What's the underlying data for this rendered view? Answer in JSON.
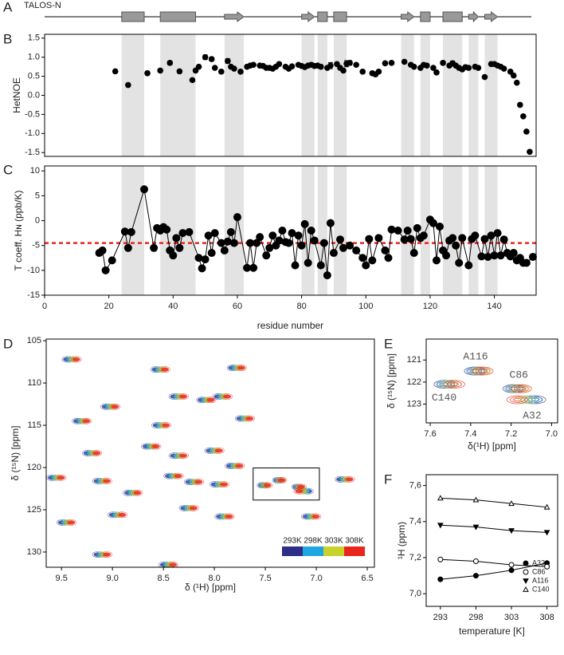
{
  "chart_data": [
    {
      "panel": "A",
      "type": "track",
      "title": "TALOS-N",
      "xlim": [
        0,
        153
      ],
      "color": "#999999",
      "elements": [
        {
          "kind": "helix",
          "start": 24,
          "end": 31
        },
        {
          "kind": "helix",
          "start": 36,
          "end": 47
        },
        {
          "kind": "strand",
          "start": 56,
          "end": 62
        },
        {
          "kind": "strand",
          "start": 80,
          "end": 84
        },
        {
          "kind": "helix",
          "start": 85,
          "end": 88
        },
        {
          "kind": "helix",
          "start": 90,
          "end": 94
        },
        {
          "kind": "strand",
          "start": 111,
          "end": 115
        },
        {
          "kind": "helix",
          "start": 117,
          "end": 120
        },
        {
          "kind": "helix",
          "start": 124,
          "end": 130
        },
        {
          "kind": "strand",
          "start": 132,
          "end": 135
        },
        {
          "kind": "strand",
          "start": 137,
          "end": 141
        }
      ]
    },
    {
      "panel": "B",
      "type": "scatter",
      "ylabel": "HetNOE",
      "xlim": [
        0,
        153
      ],
      "ylim": [
        -1.6,
        1.6
      ],
      "shade_secondary_structure": true,
      "color": "#000000",
      "yticks": [
        -1.5,
        {
          "value": -1,
          "label": "-1.0"
        },
        -0.5,
        {
          "value": 0,
          "label": "0.0"
        },
        0.5,
        {
          "value": 1,
          "label": "1.0"
        },
        1.5
      ],
      "x": [
        22,
        26,
        32,
        36,
        39,
        42,
        46,
        47,
        48,
        50,
        52,
        53,
        55,
        57,
        58,
        59,
        61,
        63,
        64,
        65,
        67,
        68,
        69,
        70,
        71,
        72,
        73,
        75,
        76,
        77,
        79,
        80,
        81,
        82,
        83,
        84,
        85,
        86,
        88,
        89,
        91,
        92,
        93,
        94,
        95,
        97,
        99,
        102,
        103,
        104,
        106,
        108,
        112,
        114,
        115,
        117,
        118,
        119,
        121,
        122,
        124,
        126,
        127,
        128,
        129,
        130,
        131,
        132,
        134,
        135,
        137,
        139,
        140,
        141,
        142,
        143,
        145,
        146,
        147,
        148,
        149,
        150,
        151
      ],
      "values": [
        0.63,
        0.27,
        0.58,
        0.65,
        0.85,
        0.63,
        0.4,
        0.65,
        0.75,
        1.0,
        0.95,
        0.72,
        0.62,
        0.9,
        0.75,
        0.7,
        0.62,
        0.75,
        0.78,
        0.8,
        0.78,
        0.77,
        0.72,
        0.72,
        0.7,
        0.75,
        0.82,
        0.75,
        0.7,
        0.76,
        0.8,
        0.77,
        0.74,
        0.78,
        0.8,
        0.77,
        0.78,
        0.75,
        0.72,
        0.78,
        0.82,
        0.72,
        0.65,
        0.83,
        0.85,
        0.8,
        0.62,
        0.58,
        0.55,
        0.62,
        0.84,
        0.85,
        0.88,
        0.8,
        0.75,
        0.72,
        0.8,
        0.78,
        0.72,
        0.6,
        0.85,
        0.78,
        0.84,
        0.78,
        0.72,
        0.68,
        0.74,
        0.72,
        0.75,
        0.72,
        0.48,
        0.82,
        0.82,
        0.78,
        0.75,
        0.7,
        0.62,
        0.52,
        0.33,
        -0.25,
        -0.55,
        -0.95,
        -1.48
      ],
      "errors": [
        0.04,
        0.03,
        0.05,
        0.04,
        0.05,
        0.04,
        0.04,
        0.03,
        0.03,
        0.06,
        0.05,
        0.03,
        0.04,
        0.06,
        0.03,
        0.03,
        0.03,
        0.03,
        0.03,
        0.03,
        0.03,
        0.03,
        0.03,
        0.03,
        0.03,
        0.03,
        0.04,
        0.03,
        0.03,
        0.03,
        0.03,
        0.03,
        0.03,
        0.03,
        0.05,
        0.05,
        0.03,
        0.05,
        0.03,
        0.08,
        0.03,
        0.03,
        0.03,
        0.08,
        0.06,
        0.04,
        0.04,
        0.04,
        0.05,
        0.04,
        0.03,
        0.03,
        0.03,
        0.03,
        0.03,
        0.03,
        0.03,
        0.03,
        0.03,
        0.04,
        0.05,
        0.03,
        0.06,
        0.03,
        0.03,
        0.03,
        0.03,
        0.03,
        0.03,
        0.03,
        0.04,
        0.04,
        0.04,
        0.03,
        0.03,
        0.03,
        0.03,
        0.03,
        0.03,
        0.03,
        0.03,
        0.03,
        0.03
      ]
    },
    {
      "panel": "C",
      "type": "line",
      "xlabel": "residue number",
      "ylabel": "T coeff. Hɴ (ppb/K)",
      "xlim": [
        0,
        153
      ],
      "ylim": [
        -15,
        11
      ],
      "shade_secondary_structure": true,
      "xticks": [
        0,
        20,
        40,
        60,
        80,
        100,
        120,
        140
      ],
      "yticks": [
        -15,
        -10,
        -5,
        0,
        5,
        10
      ],
      "color": "#000000",
      "marker": "circle-filled",
      "threshold": -4.5,
      "threshold_color": "#e8261e",
      "x": [
        17,
        18,
        19,
        21,
        25,
        26,
        27,
        31,
        34,
        35,
        36,
        37,
        38,
        39,
        40,
        41,
        42,
        43,
        45,
        48,
        49,
        50,
        51,
        52,
        53,
        55,
        56,
        57,
        58,
        59,
        60,
        63,
        64,
        65,
        66,
        67,
        69,
        70,
        71,
        72,
        73,
        74,
        75,
        76,
        77,
        78,
        79,
        80,
        81,
        82,
        83,
        84,
        86,
        87,
        88,
        89,
        90,
        92,
        93,
        95,
        97,
        99,
        100,
        101,
        102,
        104,
        106,
        107,
        108,
        110,
        112,
        113,
        114,
        115,
        116,
        117,
        118,
        120,
        121,
        122,
        123,
        124,
        125,
        126,
        127,
        128,
        129,
        130,
        132,
        133,
        134,
        136,
        137,
        138,
        139,
        140,
        141,
        142,
        143,
        144,
        145,
        146,
        147,
        148,
        149,
        150,
        152
      ],
      "values": [
        -6.5,
        -6,
        -10,
        -8,
        -2.2,
        -5.5,
        -2.3,
        6.3,
        -5.5,
        -1.5,
        -2,
        -1.3,
        -1.8,
        -6,
        -7,
        -3.5,
        -5.5,
        -2.5,
        -2.3,
        -7.5,
        -9.6,
        -7.8,
        -3,
        -6.5,
        -2.5,
        -4.5,
        -6,
        -4.2,
        -2.3,
        -4.5,
        0.7,
        -9.5,
        -4.5,
        -9.5,
        -4.5,
        -3.3,
        -7,
        -5.5,
        -3,
        -5,
        -4,
        -2,
        -4.3,
        -4.5,
        -2.5,
        -9,
        -3,
        -5,
        -0.7,
        -8.5,
        -2,
        -4,
        -9,
        -4.5,
        -11,
        -0.5,
        -6.5,
        -3.8,
        -5.5,
        -5,
        -6,
        -7.5,
        -9,
        -3.7,
        -8,
        -3.5,
        -6,
        -7.5,
        -1.8,
        -2,
        -3.8,
        -2,
        -3.7,
        -6.5,
        -1.5,
        -3.5,
        -3,
        0.2,
        -0.5,
        -8,
        -1.2,
        -6,
        -7,
        -4,
        -3.5,
        -5,
        -8.5,
        -3.5,
        -9,
        -3.7,
        -3,
        -7.2,
        -3.7,
        -7.3,
        -3,
        -7,
        -2.5,
        -7,
        -3.8,
        -6.5,
        -7.2,
        -6.5,
        -8,
        -7.5,
        -8.5,
        -8.5,
        -7.3
      ]
    },
    {
      "panel": "D",
      "type": "spectrum",
      "xlabel": "δ (¹H) [ppm]",
      "ylabel": "δ (¹⁵N) [ppm]",
      "xlim": [
        9.65,
        6.43
      ],
      "ylim": [
        104.8,
        131.8
      ],
      "legend": "lower right",
      "xticks": [
        9.5,
        {
          "value": 9,
          "label": "9.0"
        },
        8.5,
        {
          "value": 8,
          "label": "8.0"
        },
        7.5,
        {
          "value": 7,
          "label": "7.0"
        },
        6.5
      ],
      "yticks": [
        105,
        110,
        115,
        120,
        125,
        130
      ],
      "y": [
        107.2,
        108.4,
        108.2,
        112.8,
        111.6,
        112.0,
        111.6,
        114.5,
        115.0,
        114.2,
        117.5,
        118.3,
        118.6,
        118.0,
        119.8,
        121.6,
        121.0,
        121.7,
        122.0,
        123.0,
        121.2,
        125.6,
        124.8,
        125.8,
        125.8,
        121.4,
        126.5,
        130.3,
        131.5,
        121.5,
        122.3,
        122.1,
        122.8
      ],
      "series": [
        {
          "name": "293K",
          "color": "#2e2d88",
          "x": [
            9.445,
            8.575,
            7.825,
            9.065,
            8.395,
            8.125,
            7.965,
            9.345,
            8.565,
            7.745,
            8.665,
            9.245,
            8.395,
            8.045,
            7.845,
            9.145,
            8.445,
            8.245,
            7.995,
            8.845,
            9.595,
            8.995,
            8.295,
            7.945,
            7.095,
            6.765,
            9.495,
            9.145,
            8.495,
            7.38,
            7.19,
            7.53,
            7.08
          ]
        },
        {
          "name": "298K",
          "color": "#1ea7e1",
          "x": [
            9.415,
            8.545,
            7.795,
            9.035,
            8.365,
            8.095,
            7.935,
            9.315,
            8.535,
            7.715,
            8.635,
            9.215,
            8.365,
            8.015,
            7.815,
            9.115,
            8.415,
            8.215,
            7.965,
            8.815,
            9.565,
            8.965,
            8.265,
            7.915,
            7.065,
            6.735,
            9.465,
            9.115,
            8.465,
            7.37,
            7.18,
            7.52,
            7.1
          ]
        },
        {
          "name": "303K",
          "color": "#c8d22a",
          "x": [
            9.385,
            8.515,
            7.765,
            9.005,
            8.335,
            8.065,
            7.905,
            9.285,
            8.505,
            7.685,
            8.605,
            9.185,
            8.335,
            7.985,
            7.785,
            9.085,
            8.385,
            8.185,
            7.935,
            8.785,
            9.535,
            8.935,
            8.235,
            7.885,
            7.035,
            6.705,
            9.435,
            9.085,
            8.435,
            7.35,
            7.16,
            7.5,
            7.13
          ]
        },
        {
          "name": "308K",
          "color": "#e8261e",
          "x": [
            9.355,
            8.485,
            7.735,
            8.975,
            8.305,
            8.035,
            7.875,
            9.255,
            8.475,
            7.655,
            8.575,
            9.155,
            8.305,
            7.955,
            7.755,
            9.055,
            8.355,
            8.155,
            7.905,
            8.755,
            9.505,
            8.905,
            8.205,
            7.855,
            7.005,
            6.675,
            9.405,
            9.055,
            8.405,
            7.34,
            7.15,
            7.48,
            7.17
          ]
        }
      ]
    },
    {
      "panel": "E",
      "type": "spectrum",
      "xlabel": "δ(¹H) [ppm]",
      "ylabel": "δ (¹⁵N) [ppm]",
      "xlim": [
        7.62,
        6.97
      ],
      "ylim": [
        120.05,
        123.85
      ],
      "xticks": [
        7.6,
        7.4,
        7.2,
        {
          "value": 7,
          "label": "7.0"
        }
      ],
      "yticks": [
        121,
        122,
        123
      ],
      "labels": [
        "A32",
        "C86",
        "A116",
        "C140"
      ],
      "y": [
        122.8,
        122.3,
        121.5,
        122.1
      ],
      "series": [
        {
          "color": "#2e2d88",
          "x": [
            7.08,
            7.19,
            7.38,
            7.53
          ]
        },
        {
          "color": "#1ea7e1",
          "x": [
            7.1,
            7.18,
            7.37,
            7.52
          ]
        },
        {
          "color": "#c8d22a",
          "x": [
            7.13,
            7.16,
            7.35,
            7.5
          ]
        },
        {
          "color": "#e8261e",
          "x": [
            7.17,
            7.15,
            7.34,
            7.48
          ]
        }
      ]
    },
    {
      "panel": "F",
      "type": "line",
      "xlabel": "temperature [K]",
      "ylabel": "¹H (ppm)",
      "legend": "lower right",
      "x": [
        293,
        298,
        303,
        308
      ],
      "xlim": [
        291,
        309.5
      ],
      "xticks": [
        293,
        298,
        303,
        308
      ],
      "ylim": [
        6.93,
        7.66
      ],
      "yticks": [
        {
          "value": 7,
          "label": "7,0"
        },
        {
          "value": 7.2,
          "label": "7,2"
        },
        {
          "value": 7.4,
          "label": "7,4"
        },
        {
          "value": 7.6,
          "label": "7,6"
        }
      ],
      "series": [
        {
          "name": "A32",
          "marker": "circle-filled",
          "color": "#000000",
          "values": [
            7.08,
            7.1,
            7.13,
            7.17
          ]
        },
        {
          "name": "C86",
          "marker": "circle-open",
          "color": "#000000",
          "values": [
            7.19,
            7.18,
            7.16,
            7.15
          ]
        },
        {
          "name": "A116",
          "marker": "triangle-down-filled",
          "color": "#000000",
          "values": [
            7.38,
            7.37,
            7.35,
            7.34
          ]
        },
        {
          "name": "C140",
          "marker": "triangle-up-open",
          "color": "#000000",
          "values": [
            7.53,
            7.52,
            7.5,
            7.48
          ]
        }
      ]
    }
  ]
}
